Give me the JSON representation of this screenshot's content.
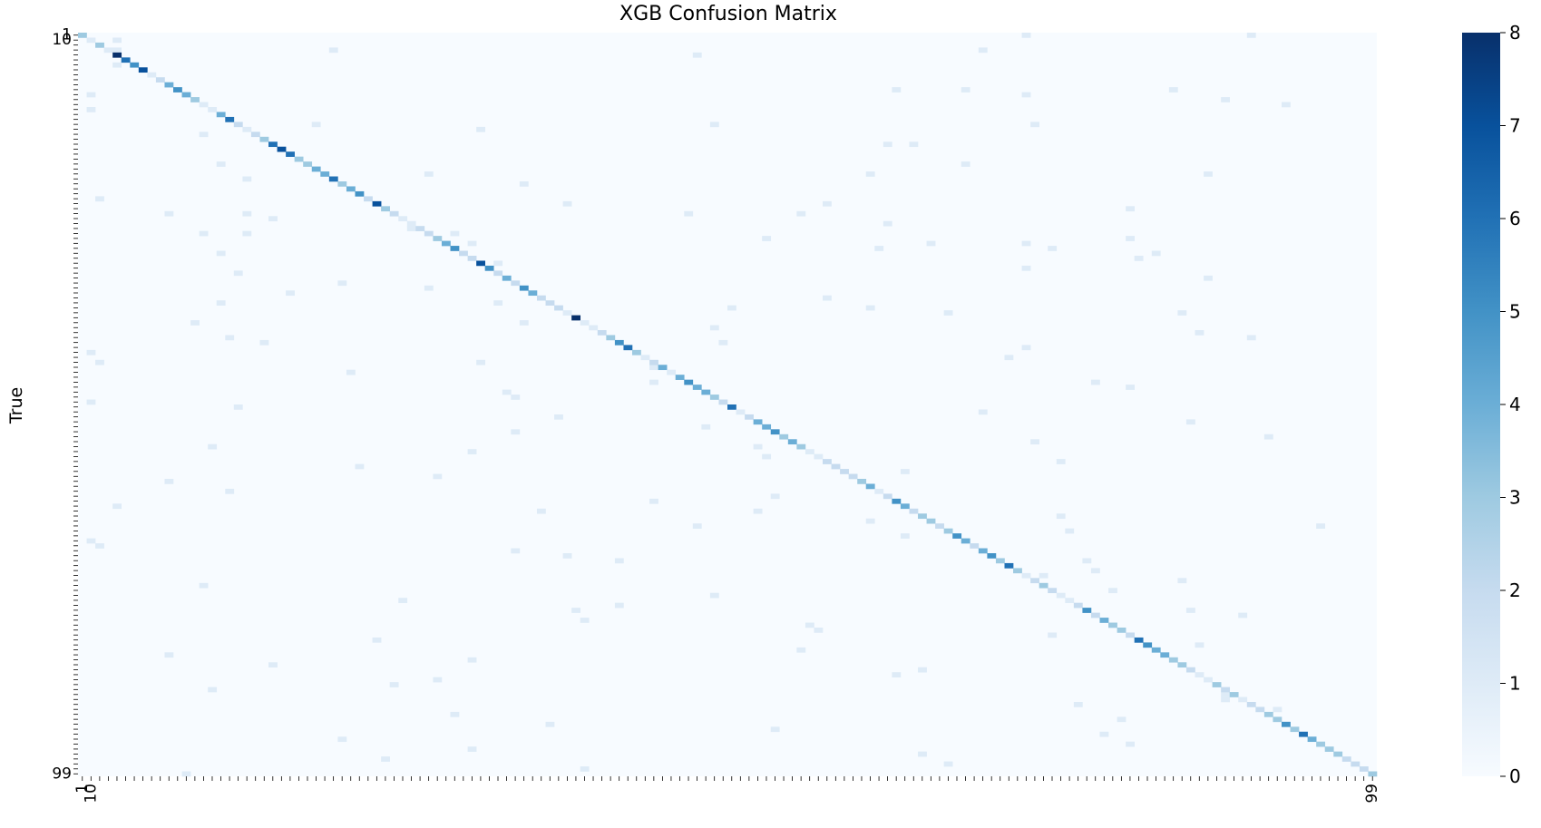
{
  "chart_data": {
    "type": "heatmap",
    "title": "XGB Confusion Matrix",
    "ylabel": "True",
    "xlabel": "",
    "colormap": "Blues",
    "colorbar": {
      "min": 0,
      "max": 8,
      "ticks": [
        0,
        1,
        2,
        3,
        4,
        5,
        6,
        7,
        8
      ]
    },
    "y_tick_labels_visible": [
      "1",
      "10",
      "99"
    ],
    "x_tick_labels_visible": [
      "1",
      "10",
      "99"
    ],
    "colors": {
      "low": "#f7fbff",
      "mid": "#6baed6",
      "high": "#08306b"
    },
    "num_classes": 150,
    "diagonal_values": [
      3,
      1,
      3,
      1,
      8,
      6,
      5,
      7,
      1,
      2,
      4,
      5,
      4,
      3,
      1,
      1,
      4,
      6,
      2,
      1,
      2,
      3,
      6,
      7,
      6,
      3,
      3,
      4,
      4,
      6,
      3,
      4,
      5,
      2,
      7,
      3,
      2,
      1,
      1,
      2,
      2,
      3,
      4,
      5,
      2,
      2,
      7,
      5,
      2,
      4,
      2,
      5,
      4,
      2,
      2,
      2,
      1,
      8,
      1,
      1,
      2,
      3,
      5,
      6,
      3,
      1,
      2,
      4,
      1,
      4,
      5,
      4,
      4,
      3,
      2,
      6,
      1,
      2,
      4,
      4,
      5,
      3,
      4,
      3,
      1,
      1,
      2,
      2,
      2,
      2,
      3,
      4,
      1,
      2,
      5,
      4,
      2,
      3,
      3,
      2,
      3,
      5,
      4,
      2,
      4,
      5,
      3,
      6,
      3,
      1,
      2,
      3,
      2,
      1,
      1,
      2,
      5,
      2,
      4,
      3,
      3,
      2,
      6,
      5,
      4,
      4,
      3,
      3,
      2,
      1,
      1,
      3,
      2,
      3,
      1,
      2,
      2,
      3,
      3,
      5,
      3,
      6,
      4,
      3,
      3,
      3,
      2,
      2,
      2,
      3
    ],
    "off_diagonal_cells": [
      [
        0,
        109
      ],
      [
        0,
        135
      ],
      [
        1,
        4
      ],
      [
        3,
        4
      ],
      [
        3,
        29
      ],
      [
        3,
        104
      ],
      [
        4,
        71
      ],
      [
        6,
        4
      ],
      [
        11,
        102
      ],
      [
        11,
        94
      ],
      [
        11,
        126
      ],
      [
        12,
        1
      ],
      [
        12,
        109
      ],
      [
        13,
        132
      ],
      [
        14,
        139
      ],
      [
        15,
        1
      ],
      [
        18,
        73
      ],
      [
        18,
        27
      ],
      [
        18,
        110
      ],
      [
        19,
        46
      ],
      [
        20,
        14
      ],
      [
        22,
        93
      ],
      [
        22,
        96
      ],
      [
        26,
        16
      ],
      [
        26,
        102
      ],
      [
        28,
        91
      ],
      [
        28,
        40
      ],
      [
        28,
        130
      ],
      [
        29,
        19
      ],
      [
        30,
        51
      ],
      [
        33,
        2
      ],
      [
        34,
        56
      ],
      [
        35,
        121
      ],
      [
        36,
        19
      ],
      [
        36,
        10
      ],
      [
        36,
        70
      ],
      [
        36,
        83
      ],
      [
        37,
        22
      ],
      [
        38,
        93
      ],
      [
        39,
        38
      ],
      [
        40,
        14
      ],
      [
        40,
        19
      ],
      [
        40,
        43
      ],
      [
        41,
        79
      ],
      [
        41,
        121
      ],
      [
        42,
        45
      ],
      [
        42,
        109
      ],
      [
        43,
        112
      ],
      [
        43,
        92
      ],
      [
        44,
        16
      ],
      [
        44,
        124
      ],
      [
        45,
        122
      ],
      [
        46,
        48
      ],
      [
        47,
        109
      ],
      [
        48,
        18
      ],
      [
        49,
        130
      ],
      [
        50,
        30
      ],
      [
        51,
        40
      ],
      [
        52,
        24
      ],
      [
        53,
        86
      ],
      [
        54,
        16
      ],
      [
        54,
        48
      ],
      [
        55,
        91
      ],
      [
        55,
        75
      ],
      [
        56,
        100
      ],
      [
        56,
        127
      ],
      [
        58,
        51
      ],
      [
        58,
        13
      ],
      [
        59,
        73
      ],
      [
        60,
        129
      ],
      [
        61,
        17
      ],
      [
        61,
        135
      ],
      [
        62,
        21
      ],
      [
        62,
        74
      ],
      [
        63,
        109
      ],
      [
        64,
        1
      ],
      [
        65,
        107
      ],
      [
        66,
        2
      ],
      [
        67,
        66
      ],
      [
        68,
        31
      ],
      [
        70,
        66
      ],
      [
        71,
        121
      ],
      [
        72,
        49
      ],
      [
        73,
        50
      ],
      [
        74,
        1
      ],
      [
        75,
        18
      ],
      [
        76,
        104
      ],
      [
        77,
        55
      ],
      [
        78,
        128
      ],
      [
        79,
        72
      ],
      [
        80,
        50
      ],
      [
        81,
        137
      ],
      [
        82,
        110
      ],
      [
        83,
        15
      ],
      [
        83,
        78
      ],
      [
        84,
        45
      ],
      [
        85,
        79
      ],
      [
        86,
        113
      ],
      [
        87,
        32
      ],
      [
        88,
        95
      ],
      [
        89,
        41
      ],
      [
        90,
        10
      ],
      [
        91,
        91
      ],
      [
        92,
        17
      ],
      [
        93,
        80
      ],
      [
        94,
        66
      ],
      [
        95,
        4
      ],
      [
        96,
        53
      ],
      [
        97,
        113
      ],
      [
        98,
        91
      ],
      [
        99,
        71
      ],
      [
        100,
        114
      ],
      [
        101,
        95
      ],
      [
        102,
        1
      ],
      [
        103,
        2
      ],
      [
        104,
        50
      ],
      [
        105,
        56
      ],
      [
        106,
        62
      ],
      [
        107,
        107
      ],
      [
        108,
        117
      ],
      [
        109,
        111
      ],
      [
        110,
        127
      ],
      [
        111,
        14
      ],
      [
        112,
        119
      ],
      [
        113,
        73
      ],
      [
        114,
        37
      ],
      [
        115,
        62
      ],
      [
        116,
        57
      ],
      [
        117,
        134
      ],
      [
        118,
        58
      ],
      [
        119,
        84
      ],
      [
        120,
        85
      ],
      [
        121,
        112
      ],
      [
        122,
        34
      ],
      [
        123,
        129
      ],
      [
        124,
        83
      ],
      [
        125,
        10
      ],
      [
        126,
        45
      ],
      [
        127,
        22
      ],
      [
        128,
        97
      ],
      [
        129,
        94
      ],
      [
        130,
        41
      ],
      [
        131,
        36
      ],
      [
        132,
        15
      ],
      [
        133,
        132
      ],
      [
        134,
        132
      ],
      [
        135,
        115
      ],
      [
        136,
        138
      ],
      [
        137,
        43
      ],
      [
        138,
        120
      ],
      [
        139,
        54
      ],
      [
        140,
        80
      ],
      [
        141,
        118
      ],
      [
        142,
        30
      ],
      [
        143,
        121
      ],
      [
        144,
        45
      ],
      [
        145,
        97
      ],
      [
        146,
        35
      ],
      [
        147,
        100
      ],
      [
        148,
        58
      ],
      [
        149,
        12
      ],
      [
        34,
        86
      ],
      [
        42,
        98
      ],
      [
        66,
        46
      ],
      [
        70,
        117
      ],
      [
        106,
        116
      ],
      [
        116,
        128
      ],
      [
        99,
        143
      ],
      [
        96,
        78
      ]
    ]
  }
}
